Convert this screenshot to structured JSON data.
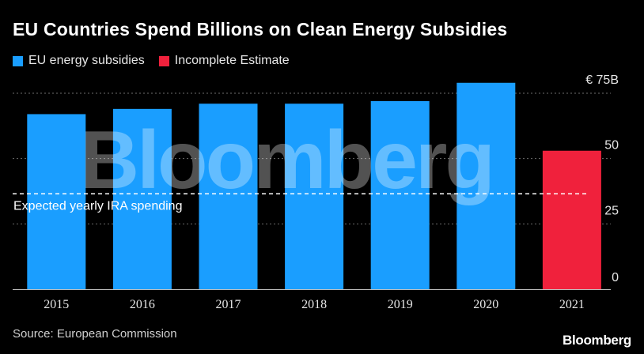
{
  "chart_data": {
    "type": "bar",
    "title": "EU Countries Spend Billions on Clean Energy Subsidies",
    "categories": [
      "2015",
      "2016",
      "2017",
      "2018",
      "2019",
      "2020",
      "2021"
    ],
    "series": [
      {
        "name": "EU energy subsidies",
        "color": "#1a9eff",
        "values": [
          67,
          69,
          71,
          71,
          72,
          79,
          null
        ]
      },
      {
        "name": "Incomplete Estimate",
        "color": "#f0213c",
        "values": [
          null,
          null,
          null,
          null,
          null,
          null,
          53
        ]
      }
    ],
    "ylim": [
      0,
      75
    ],
    "y_ticks": [
      {
        "value": 75,
        "label": "€ 75B"
      },
      {
        "value": 50,
        "label": "50"
      },
      {
        "value": 25,
        "label": "25"
      },
      {
        "value": 0,
        "label": "0"
      }
    ],
    "grid": true,
    "legend_position": "top-left",
    "reference_line": {
      "label": "Expected yearly IRA spending",
      "value": 36.5
    },
    "source": "Source: European Commission",
    "watermark": "Bloomberg"
  },
  "branding": {
    "logo": "Bloomberg"
  }
}
